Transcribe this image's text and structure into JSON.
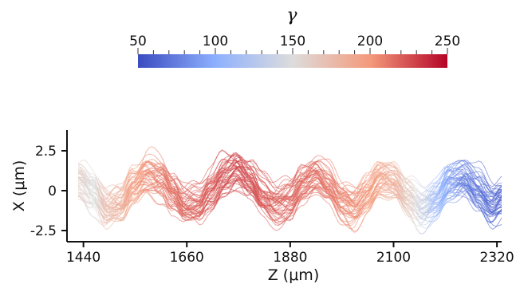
{
  "chart_data": {
    "type": "line",
    "xlabel": "Z (μm)",
    "ylabel": "X (μm)",
    "xlim": [
      1405,
      2330
    ],
    "ylim": [
      -3.2,
      3.8
    ],
    "x_ticks": [
      1440,
      1660,
      1880,
      2100,
      2320
    ],
    "y_ticks": [
      2.5,
      0,
      -2.5
    ],
    "y_tick_labels": [
      "2.5",
      "0",
      "-2.5"
    ],
    "grid": false,
    "colorbar": {
      "title": "γ",
      "range": [
        50,
        250
      ],
      "ticks": [
        50,
        100,
        150,
        200,
        250
      ],
      "colormap": "coolwarm",
      "low_color": "#3b4cc0",
      "mid_color": "#dddcdc",
      "high_color": "#b40426",
      "placement": "top"
    },
    "series": [
      {
        "description": "bundle of many overlapping trajectory curves, colored by gamma",
        "x": [
          1405,
          1430,
          1460,
          1490,
          1520,
          1545,
          1575,
          1605,
          1630,
          1655,
          1685,
          1710,
          1740,
          1765,
          1795,
          1820,
          1850,
          1880,
          1905,
          1935,
          1960,
          1990,
          2015,
          2045,
          2070,
          2100,
          2130,
          2160,
          2190,
          2220,
          2250,
          2280,
          2310,
          2330
        ],
        "y_center": [
          1.2,
          0.8,
          0.0,
          -1.2,
          -1.0,
          0.3,
          1.1,
          0.8,
          -0.2,
          -1.1,
          -0.9,
          0.0,
          1.0,
          1.3,
          0.5,
          -0.4,
          -0.8,
          -0.5,
          0.4,
          0.8,
          0.3,
          -0.6,
          -0.9,
          -0.2,
          0.6,
          0.5,
          -0.4,
          -1.0,
          -0.6,
          0.4,
          0.7,
          0.0,
          -0.8,
          -0.5
        ],
        "half_width": 1.1,
        "gamma": [
          165,
          160,
          150,
          175,
          185,
          195,
          205,
          210,
          215,
          218,
          220,
          222,
          225,
          228,
          226,
          222,
          220,
          218,
          216,
          215,
          212,
          208,
          205,
          200,
          195,
          185,
          165,
          140,
          110,
          90,
          75,
          70,
          65,
          60
        ]
      }
    ]
  }
}
